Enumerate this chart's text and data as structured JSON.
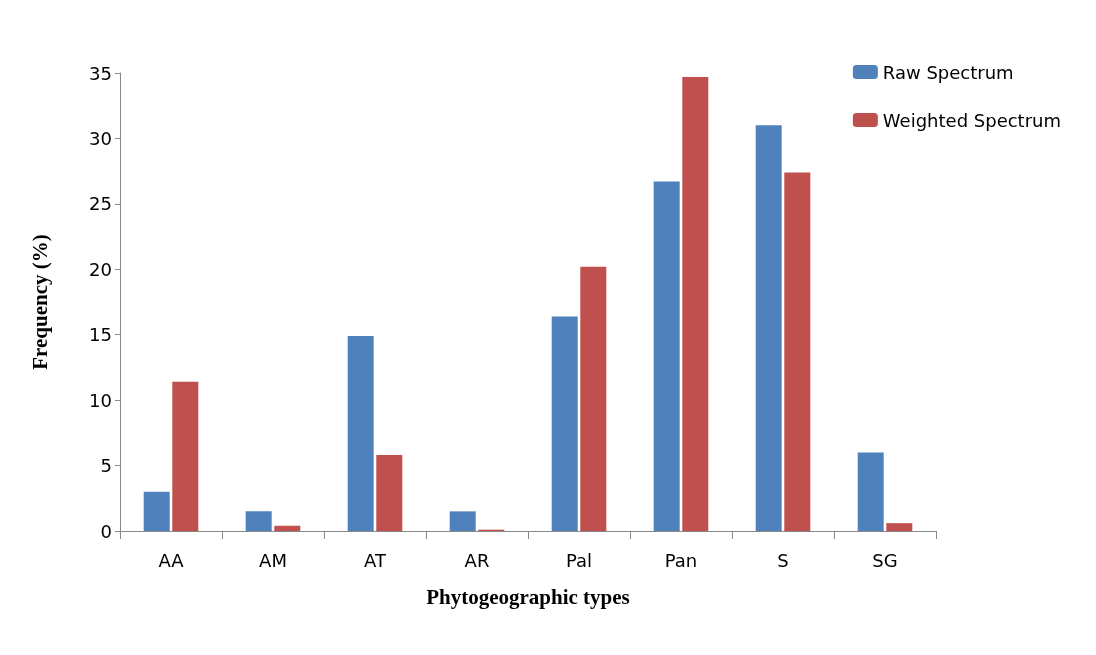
{
  "chart_data": {
    "type": "bar",
    "xlabel": "Phytogeographic types",
    "ylabel": "Frequency (%)",
    "categories": [
      "AA",
      "AM",
      "AT",
      "AR",
      "Pal",
      "Pan",
      "S",
      "SG"
    ],
    "series": [
      {
        "name": "Raw Spectrum",
        "color": "#4f81bd",
        "values": [
          3.0,
          1.5,
          14.9,
          1.5,
          16.4,
          26.7,
          31.0,
          6.0
        ]
      },
      {
        "name": "Weighted Spectrum",
        "color": "#c0504d",
        "values": [
          11.4,
          0.4,
          5.8,
          0.1,
          20.2,
          34.7,
          27.4,
          0.6
        ]
      }
    ],
    "ylim": [
      0,
      35
    ],
    "yticks": [
      0,
      5,
      10,
      15,
      20,
      25,
      30,
      35
    ],
    "grid": false,
    "legend": "top right"
  }
}
